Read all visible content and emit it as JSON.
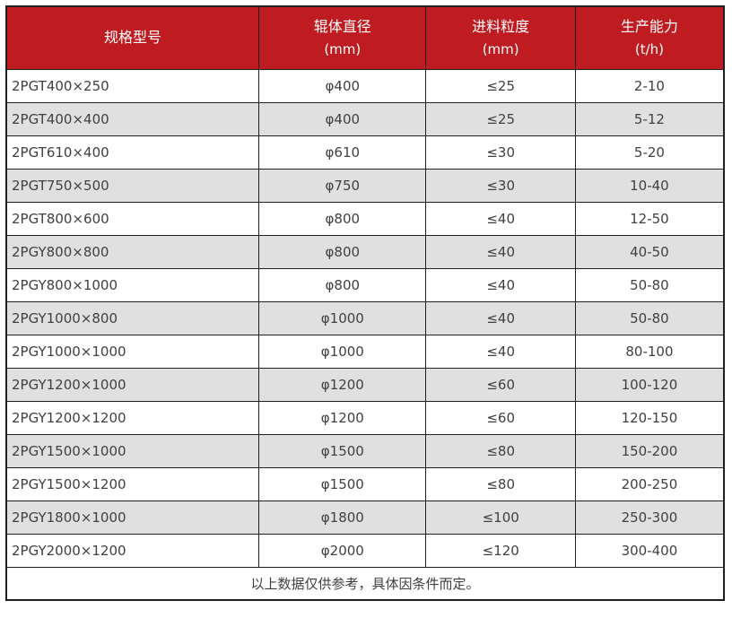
{
  "table": {
    "columns": [
      {
        "label": "规格型号",
        "sub": ""
      },
      {
        "label": "辊体直径",
        "sub": "(mm)"
      },
      {
        "label": "进料粒度",
        "sub": "(mm)"
      },
      {
        "label": "生产能力",
        "sub": "(t/h)"
      }
    ],
    "rows": [
      [
        "2PGT400×250",
        "φ400",
        "≤25",
        "2-10"
      ],
      [
        "2PGT400×400",
        "φ400",
        "≤25",
        "5-12"
      ],
      [
        "2PGT610×400",
        "φ610",
        "≤30",
        "5-20"
      ],
      [
        "2PGT750×500",
        "φ750",
        "≤30",
        "10-40"
      ],
      [
        "2PGT800×600",
        "φ800",
        "≤40",
        "12-50"
      ],
      [
        "2PGY800×800",
        "φ800",
        "≤40",
        "40-50"
      ],
      [
        "2PGY800×1000",
        "φ800",
        "≤40",
        "50-80"
      ],
      [
        "2PGY1000×800",
        "φ1000",
        "≤40",
        "50-80"
      ],
      [
        "2PGY1000×1000",
        "φ1000",
        "≤40",
        "80-100"
      ],
      [
        "2PGY1200×1000",
        "φ1200",
        "≤60",
        "100-120"
      ],
      [
        "2PGY1200×1200",
        "φ1200",
        "≤60",
        "120-150"
      ],
      [
        "2PGY1500×1000",
        "φ1500",
        "≤80",
        "150-200"
      ],
      [
        "2PGY1500×1200",
        "φ1500",
        "≤80",
        "200-250"
      ],
      [
        "2PGY1800×1000",
        "φ1800",
        "≤100",
        "250-300"
      ],
      [
        "2PGY2000×1200",
        "φ2000",
        "≤120",
        "300-400"
      ]
    ],
    "footer": "以上数据仅供参考，具体因条件而定。"
  },
  "colors": {
    "header_bg": "#be1c21",
    "header_text": "#ffffff",
    "row_alt_bg": "#e0e0e0",
    "border": "#1f1f1f",
    "body_text": "#404040"
  }
}
